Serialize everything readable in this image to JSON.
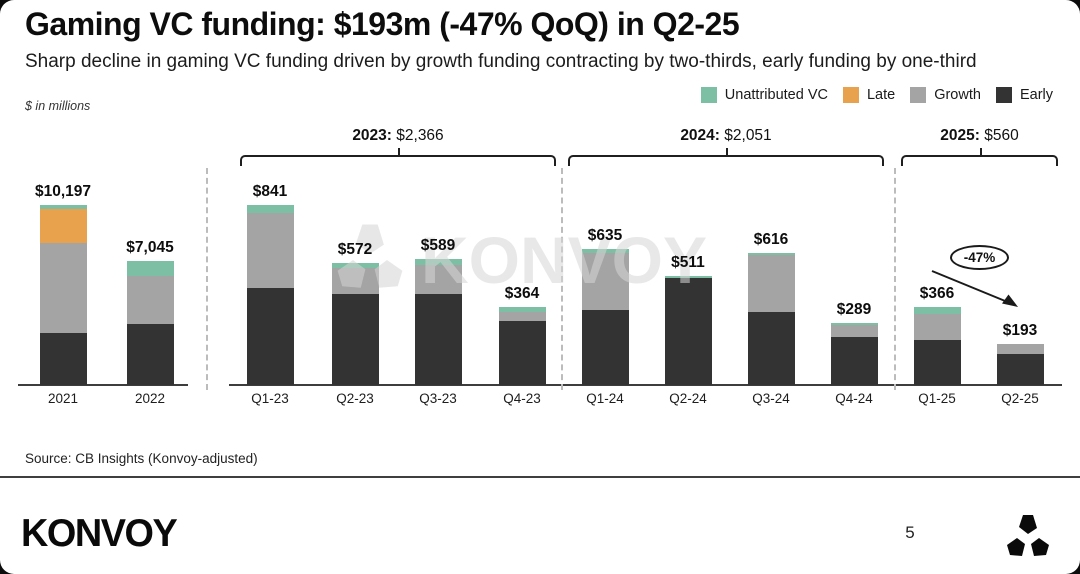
{
  "slide": {
    "title": "Gaming VC funding: $193m (-47% QoQ) in Q2-25",
    "subtitle": "Sharp decline in gaming VC funding driven by growth funding contracting by two-thirds, early funding by one-third",
    "units_note": "$ in millions",
    "source": "Source: CB Insights (Konvoy-adjusted)",
    "page_number": "5",
    "brand_wordmark": "KONVOY",
    "watermark_text": "KONVOY"
  },
  "legend": {
    "items": [
      {
        "label": "Unattributed VC",
        "color": "#7cbfa4"
      },
      {
        "label": "Late",
        "color": "#e8a24d"
      },
      {
        "label": "Growth",
        "color": "#a4a4a4"
      },
      {
        "label": "Early",
        "color": "#333333"
      }
    ]
  },
  "chart_data": {
    "type": "bar",
    "stacked": true,
    "units": "$ in millions",
    "title": "Gaming VC funding: $193m (-47% QoQ) in Q2-25",
    "legend_entries": [
      "Unattributed VC",
      "Late",
      "Growth",
      "Early"
    ],
    "colors": {
      "early": "#333333",
      "growth": "#a4a4a4",
      "late": "#e8a24d",
      "unattributed": "#7cbfa4"
    },
    "segment_order_bottom_to_top": [
      "early",
      "growth",
      "late",
      "unattributed"
    ],
    "note": "segment values estimated from bar proportions; totals are labeled on chart",
    "groups": [
      {
        "bracket": null,
        "scale": "annual",
        "bars": [
          {
            "label": "2021",
            "total": 10197,
            "total_label": "$10,197",
            "segments": {
              "early": 2929,
              "growth": 5138,
              "late": 1903,
              "unattributed": 227
            }
          },
          {
            "label": "2022",
            "total": 7045,
            "total_label": "$7,045",
            "segments": {
              "early": 3429,
              "growth": 2761,
              "late": 0,
              "unattributed": 855
            }
          }
        ]
      },
      {
        "bracket": {
          "year": "2023:",
          "total": "$2,366"
        },
        "scale": "quarterly",
        "bars": [
          {
            "label": "Q1-23",
            "total": 841,
            "total_label": "$841",
            "segments": {
              "early": 452,
              "growth": 353,
              "late": 0,
              "unattributed": 36
            }
          },
          {
            "label": "Q2-23",
            "total": 572,
            "total_label": "$572",
            "segments": {
              "early": 427,
              "growth": 120,
              "late": 0,
              "unattributed": 25
            }
          },
          {
            "label": "Q3-23",
            "total": 589,
            "total_label": "$589",
            "segments": {
              "early": 425,
              "growth": 134,
              "late": 0,
              "unattributed": 30
            }
          },
          {
            "label": "Q4-23",
            "total": 364,
            "total_label": "$364",
            "segments": {
              "early": 300,
              "growth": 42,
              "late": 0,
              "unattributed": 22
            }
          }
        ]
      },
      {
        "bracket": {
          "year": "2024:",
          "total": "$2,051"
        },
        "scale": "quarterly",
        "bars": [
          {
            "label": "Q1-24",
            "total": 635,
            "total_label": "$635",
            "segments": {
              "early": 349,
              "growth": 270,
              "late": 0,
              "unattributed": 16
            }
          },
          {
            "label": "Q2-24",
            "total": 511,
            "total_label": "$511",
            "segments": {
              "early": 499,
              "growth": 0,
              "late": 0,
              "unattributed": 12
            }
          },
          {
            "label": "Q3-24",
            "total": 616,
            "total_label": "$616",
            "segments": {
              "early": 342,
              "growth": 266,
              "late": 0,
              "unattributed": 8
            }
          },
          {
            "label": "Q4-24",
            "total": 289,
            "total_label": "$289",
            "segments": {
              "early": 226,
              "growth": 55,
              "late": 0,
              "unattributed": 8
            }
          }
        ]
      },
      {
        "bracket": {
          "year": "2025:",
          "total": "$560"
        },
        "scale": "quarterly",
        "bars": [
          {
            "label": "Q1-25",
            "total": 366,
            "total_label": "$366",
            "segments": {
              "early": 211,
              "growth": 120,
              "late": 0,
              "unattributed": 35
            }
          },
          {
            "label": "Q2-25",
            "total": 193,
            "total_label": "$193",
            "segments": {
              "early": 145,
              "growth": 48,
              "late": 0,
              "unattributed": 0
            }
          }
        ]
      }
    ],
    "annotation": {
      "text": "-47%"
    }
  }
}
